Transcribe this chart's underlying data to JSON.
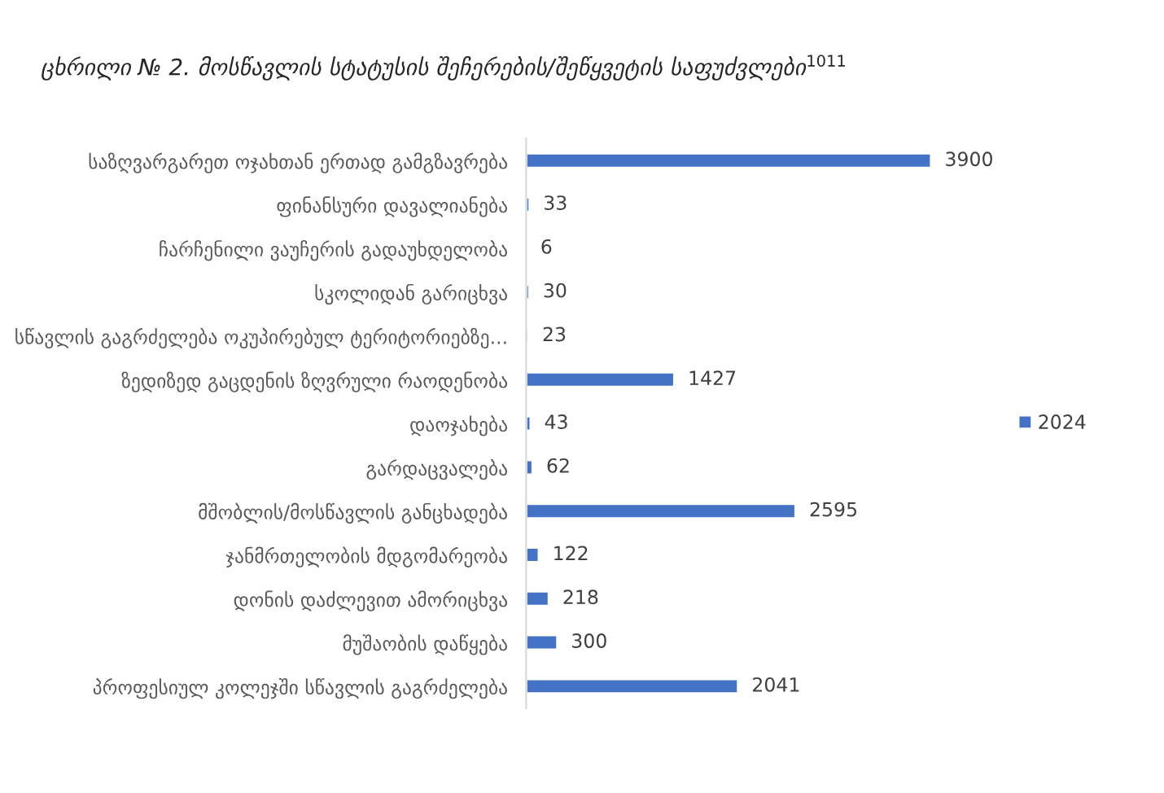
{
  "chart_data": {
    "type": "bar",
    "orientation": "horizontal",
    "title": "ცხრილი № 2. მოსწავლის სტატუსის შეჩერების/შეწყვეტის საფუძვლები$^{1011}$",
    "categories": [
      "საზღვარგარეთ ოჯახთან ერთად გამგზავრება",
      "ფინანსური დავალიანება",
      "ჩარჩენილი ვაუჩერის გადაუხდელობა",
      "სკოლიდან გარიცხვა",
      "სწავლის გაგრძელება ოკუპირებულ ტერიტორიებზე...",
      "ზედიზედ გაცდენის ზღვრული რაოდენობა",
      "დაოჯახება",
      "გარდაცვალება",
      "მშობლის/მოსწავლის განცხადება",
      "ჯანმრთელობის მდგომარეობა",
      "დონის დაძლევით ამორიცხვა",
      "მუშაობის დაწყება",
      "პროფესიულ კოლეჯში სწავლის გაგრძელება"
    ],
    "series": [
      {
        "name": "2024",
        "color": "#4472c4",
        "values": [
          3900,
          33,
          6,
          30,
          23,
          1427,
          43,
          62,
          2595,
          122,
          218,
          300,
          2041
        ]
      }
    ],
    "tick_labels": "y",
    "data_labels": true,
    "legend": "right",
    "grid": false
  }
}
